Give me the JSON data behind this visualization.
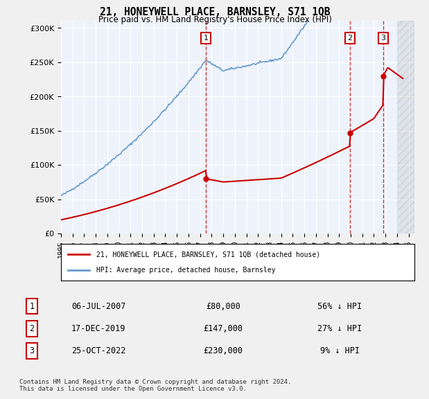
{
  "title": "21, HONEYWELL PLACE, BARNSLEY, S71 1QB",
  "subtitle": "Price paid vs. HM Land Registry's House Price Index (HPI)",
  "ylabel_ticks": [
    "£0",
    "£50K",
    "£100K",
    "£150K",
    "£200K",
    "£250K",
    "£300K"
  ],
  "ytick_values": [
    0,
    50000,
    100000,
    150000,
    200000,
    250000,
    300000
  ],
  "ylim": [
    0,
    310000
  ],
  "xlim_start": 1995.0,
  "xlim_end": 2025.5,
  "background_color": "#eef3fb",
  "plot_bg_color": "#eef3fb",
  "grid_color": "#ffffff",
  "hpi_color": "#6699cc",
  "price_color": "#cc0000",
  "sale_marker_color": "#cc0000",
  "annotation_box_color": "#cc0000",
  "dashed_line_color": "#cc0000",
  "legend_label_price": "21, HONEYWELL PLACE, BARNSLEY, S71 1QB (detached house)",
  "legend_label_hpi": "HPI: Average price, detached house, Barnsley",
  "sale_dates": [
    2007.5,
    2019.92,
    2022.81
  ],
  "sale_prices": [
    80000,
    147000,
    230000
  ],
  "sale_labels": [
    "1",
    "2",
    "3"
  ],
  "sale_info": [
    {
      "label": "1",
      "date": "06-JUL-2007",
      "price": "£80,000",
      "pct": "56% ↓ HPI"
    },
    {
      "label": "2",
      "date": "17-DEC-2019",
      "price": "£147,000",
      "pct": "27% ↓ HPI"
    },
    {
      "label": "3",
      "date": "25-OCT-2022",
      "price": "£230,000",
      "pct": "9% ↓ HPI"
    }
  ],
  "footer_text": "Contains HM Land Registry data © Crown copyright and database right 2024.\nThis data is licensed under the Open Government Licence v3.0.",
  "hatched_region_start": 2024.0,
  "hatched_region_end": 2025.5
}
